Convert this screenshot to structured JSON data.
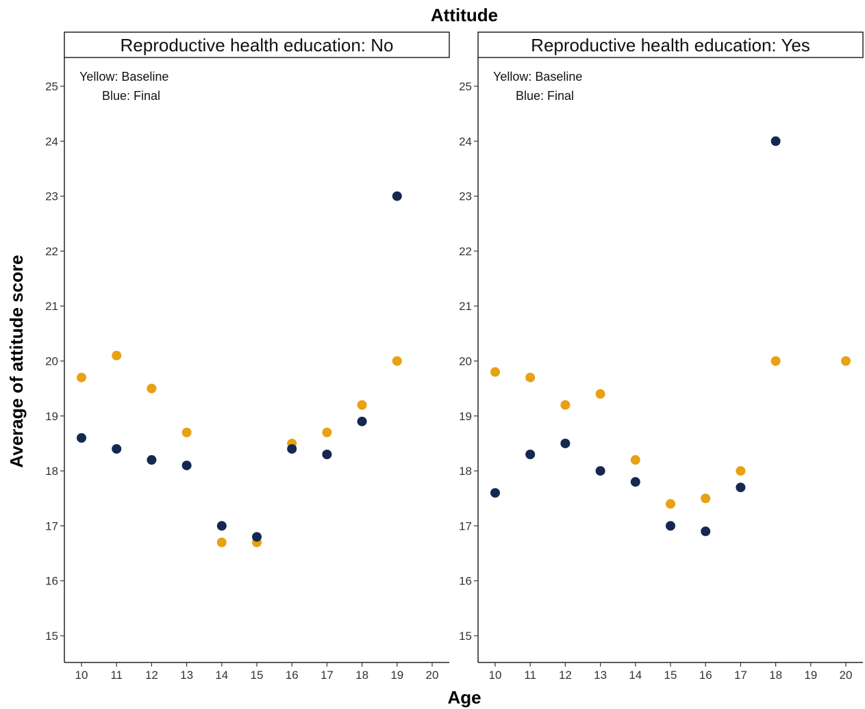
{
  "chart_data": {
    "type": "scatter",
    "title": "Attitude",
    "xlabel": "Age",
    "ylabel": "Average of attitude score",
    "xlim": [
      10,
      20
    ],
    "ylim": [
      15,
      25
    ],
    "x_ticks": [
      10,
      11,
      12,
      13,
      14,
      15,
      16,
      17,
      18,
      19,
      20
    ],
    "y_ticks": [
      15,
      16,
      17,
      18,
      19,
      20,
      21,
      22,
      23,
      24,
      25
    ],
    "grid": false,
    "colors": {
      "baseline": "#E8A112",
      "final": "#142850"
    },
    "panels": [
      {
        "strip_label": "Reproductive health education: No",
        "annotations": [
          "Yellow: Baseline",
          "Blue: Final"
        ],
        "series": [
          {
            "key": "baseline",
            "points": [
              {
                "x": 10,
                "y": 19.7
              },
              {
                "x": 11,
                "y": 20.1
              },
              {
                "x": 12,
                "y": 19.5
              },
              {
                "x": 13,
                "y": 18.7
              },
              {
                "x": 14,
                "y": 16.7
              },
              {
                "x": 15,
                "y": 16.7
              },
              {
                "x": 16,
                "y": 18.5
              },
              {
                "x": 17,
                "y": 18.7
              },
              {
                "x": 18,
                "y": 19.2
              },
              {
                "x": 19,
                "y": 20.0
              }
            ]
          },
          {
            "key": "final",
            "points": [
              {
                "x": 10,
                "y": 18.6
              },
              {
                "x": 11,
                "y": 18.4
              },
              {
                "x": 12,
                "y": 18.2
              },
              {
                "x": 13,
                "y": 18.1
              },
              {
                "x": 14,
                "y": 17.0
              },
              {
                "x": 15,
                "y": 16.8
              },
              {
                "x": 16,
                "y": 18.4
              },
              {
                "x": 17,
                "y": 18.3
              },
              {
                "x": 18,
                "y": 18.9
              },
              {
                "x": 19,
                "y": 23.0
              }
            ]
          }
        ]
      },
      {
        "strip_label": "Reproductive health education: Yes",
        "annotations": [
          "Yellow: Baseline",
          "Blue: Final"
        ],
        "series": [
          {
            "key": "baseline",
            "points": [
              {
                "x": 10,
                "y": 19.8
              },
              {
                "x": 11,
                "y": 19.7
              },
              {
                "x": 12,
                "y": 19.2
              },
              {
                "x": 13,
                "y": 19.4
              },
              {
                "x": 14,
                "y": 18.2
              },
              {
                "x": 15,
                "y": 17.4
              },
              {
                "x": 16,
                "y": 17.5
              },
              {
                "x": 17,
                "y": 18.0
              },
              {
                "x": 18,
                "y": 20.0
              },
              {
                "x": 20,
                "y": 20.0
              }
            ]
          },
          {
            "key": "final",
            "points": [
              {
                "x": 10,
                "y": 17.6
              },
              {
                "x": 11,
                "y": 18.3
              },
              {
                "x": 12,
                "y": 18.5
              },
              {
                "x": 13,
                "y": 18.0
              },
              {
                "x": 14,
                "y": 17.8
              },
              {
                "x": 15,
                "y": 17.0
              },
              {
                "x": 16,
                "y": 16.9
              },
              {
                "x": 17,
                "y": 17.7
              },
              {
                "x": 18,
                "y": 24.0
              }
            ]
          }
        ]
      }
    ]
  }
}
